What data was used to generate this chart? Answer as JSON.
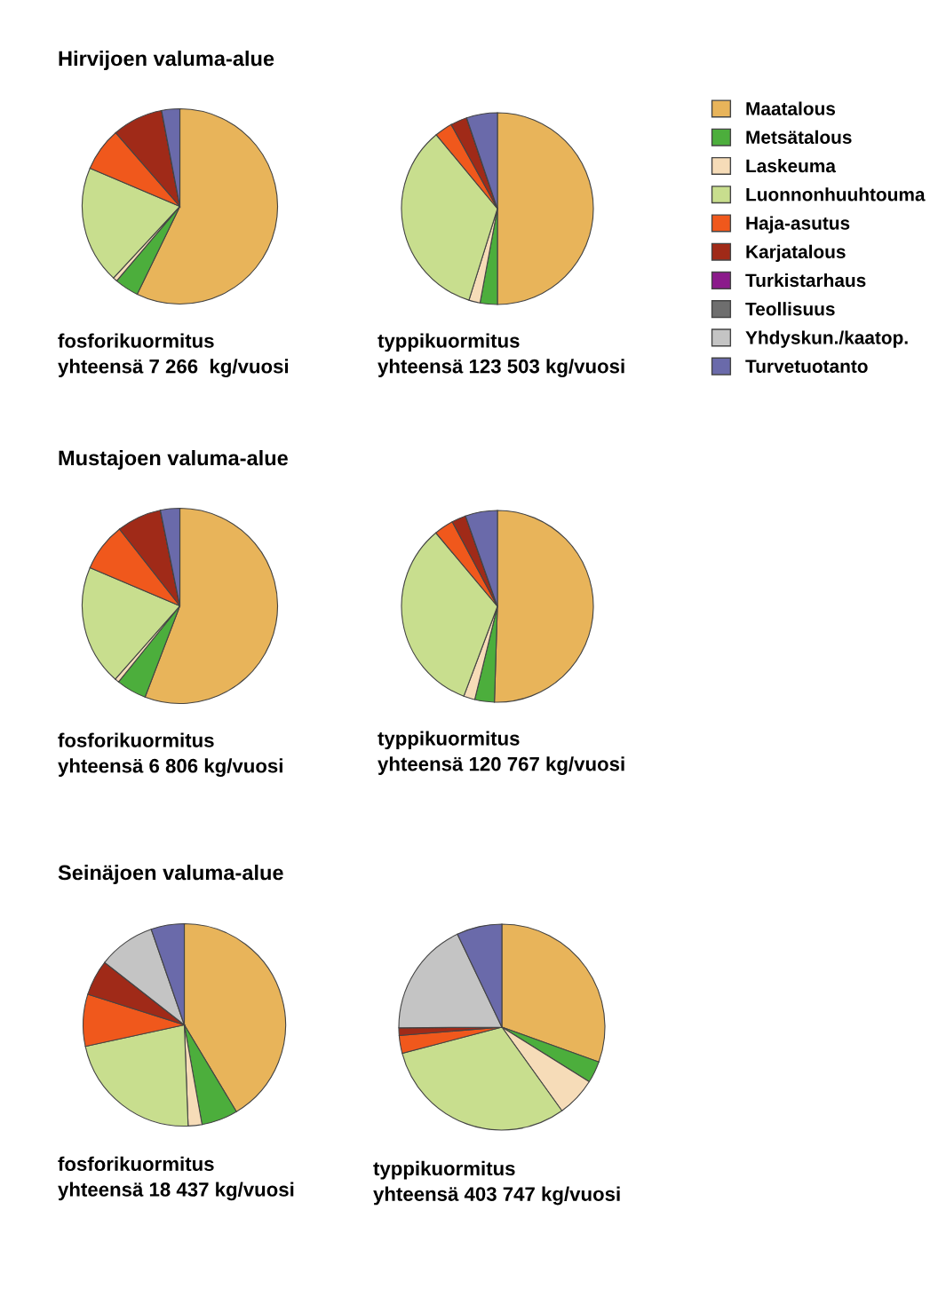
{
  "chart_data": [
    {
      "type": "pie",
      "title": "Hirvijoen valuma-alue",
      "xlabel": "fosforikuormitus\nyhteensä 7 266  kg/vuosi",
      "legend": "right",
      "categories": [
        "Maatalous",
        "Metsätalous",
        "Laskeuma",
        "Luonnonhuuhtouma",
        "Haja-asutus",
        "Karjatalous",
        "Turkistarhaus",
        "Teollisuus",
        "Yhdyskun./kaatop.",
        "Turvetuotanto"
      ],
      "values": [
        57.2,
        4,
        0.7,
        19.5,
        7.2,
        8.4,
        0,
        0,
        0,
        3
      ],
      "colors": [
        "#e8b45a",
        "#4cae3c",
        "#f6dcb8",
        "#c8de8e",
        "#f0581c",
        "#a02a18",
        "#8b1a8b",
        "#6e6e6e",
        "#c4c4c4",
        "#6a6aaa"
      ]
    },
    {
      "type": "pie",
      "xlabel": "typpikuormitus\nyhteensä 123 503 kg/vuosi",
      "categories": [
        null,
        null,
        null,
        null,
        null,
        null,
        null,
        null,
        null,
        null
      ],
      "values": [
        50,
        2.9,
        1.9,
        34.2,
        3,
        2.8,
        0,
        0,
        0,
        5.2
      ],
      "colors": [
        "#e8b45a",
        "#4cae3c",
        "#f6dcb8",
        "#c8de8e",
        "#f0581c",
        "#a02a18",
        "#8b1a8b",
        "#6e6e6e",
        "#c4c4c4",
        "#6a6aaa"
      ]
    },
    {
      "type": "pie",
      "title": "Mustajoen valuma-alue",
      "xlabel": "fosforikuormitus\nyhteensä 6 806 kg/vuosi",
      "categories": [
        null,
        null,
        null,
        null,
        null,
        null,
        null,
        null,
        null,
        null
      ],
      "values": [
        55.8,
        5,
        0.7,
        19.9,
        8,
        7.4,
        0,
        0,
        0,
        3.2
      ],
      "colors": [
        "#e8b45a",
        "#4cae3c",
        "#f6dcb8",
        "#c8de8e",
        "#f0581c",
        "#a02a18",
        "#8b1a8b",
        "#6e6e6e",
        "#c4c4c4",
        "#6a6aaa"
      ]
    },
    {
      "type": "pie",
      "xlabel": "typpikuormitus\nyhteensä 120 767 kg/vuosi",
      "categories": [
        null,
        null,
        null,
        null,
        null,
        null,
        null,
        null,
        null,
        null
      ],
      "values": [
        50.5,
        3.3,
        1.9,
        33.2,
        3.3,
        2.4,
        0,
        0,
        0,
        5.4
      ],
      "colors": [
        "#e8b45a",
        "#4cae3c",
        "#f6dcb8",
        "#c8de8e",
        "#f0581c",
        "#a02a18",
        "#8b1a8b",
        "#6e6e6e",
        "#c4c4c4",
        "#6a6aaa"
      ]
    },
    {
      "type": "pie",
      "title": "Seinäjoen valuma-alue",
      "xlabel": "fosforikuormitus\nyhteensä 18 437 kg/vuosi",
      "categories": [
        null,
        null,
        null,
        null,
        null,
        null,
        null,
        null,
        null,
        null
      ],
      "values": [
        41.4,
        5.8,
        2.2,
        22.2,
        8.3,
        5.7,
        0,
        0,
        9.1,
        5.3
      ],
      "colors": [
        "#e8b45a",
        "#4cae3c",
        "#f6dcb8",
        "#c8de8e",
        "#f0581c",
        "#a02a18",
        "#8b1a8b",
        "#6e6e6e",
        "#c4c4c4",
        "#6a6aaa"
      ]
    },
    {
      "type": "pie",
      "xlabel": "typpikuormitus\nyhteensä 403 747 kg/vuosi",
      "categories": [
        null,
        null,
        null,
        null,
        null,
        null,
        null,
        null,
        null,
        null
      ],
      "values": [
        30.5,
        3.4,
        6.2,
        30.8,
        2.8,
        1.2,
        0,
        0,
        18,
        7.1
      ],
      "colors": [
        "#e8b45a",
        "#4cae3c",
        "#f6dcb8",
        "#c8de8e",
        "#f0581c",
        "#a02a18",
        "#8b1a8b",
        "#6e6e6e",
        "#c4c4c4",
        "#6a6aaa"
      ]
    }
  ]
}
